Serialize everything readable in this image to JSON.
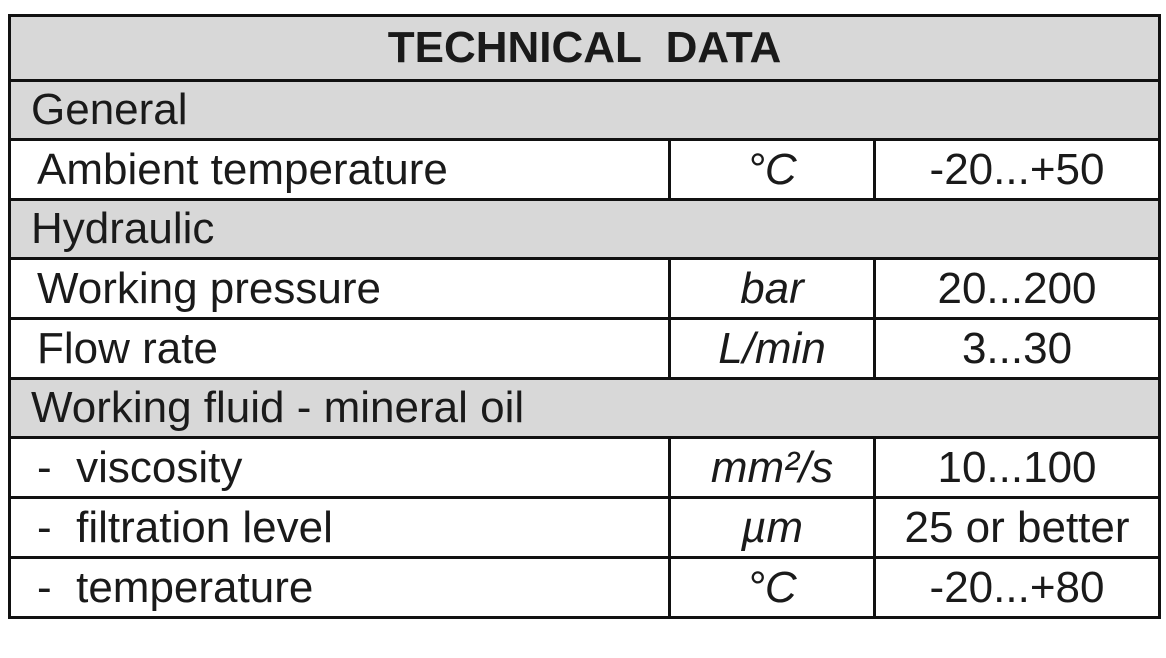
{
  "table": {
    "title": "TECHNICAL  DATA",
    "sections": [
      {
        "name": "General",
        "rows": [
          [
            "Ambient temperature",
            "°C",
            "-20...+50"
          ]
        ]
      },
      {
        "name": "Hydraulic",
        "rows": [
          [
            "Working pressure",
            "bar",
            "20...200"
          ],
          [
            "Flow rate",
            "L/min",
            "3...30"
          ]
        ]
      },
      {
        "name": "Working fluid - mineral oil",
        "rows": [
          [
            "-  viscosity",
            "mm²/s",
            "10...100"
          ],
          [
            "-  filtration level",
            "µm",
            "25 or better"
          ],
          [
            "-  temperature",
            "°C",
            "-20...+80"
          ]
        ]
      }
    ]
  }
}
